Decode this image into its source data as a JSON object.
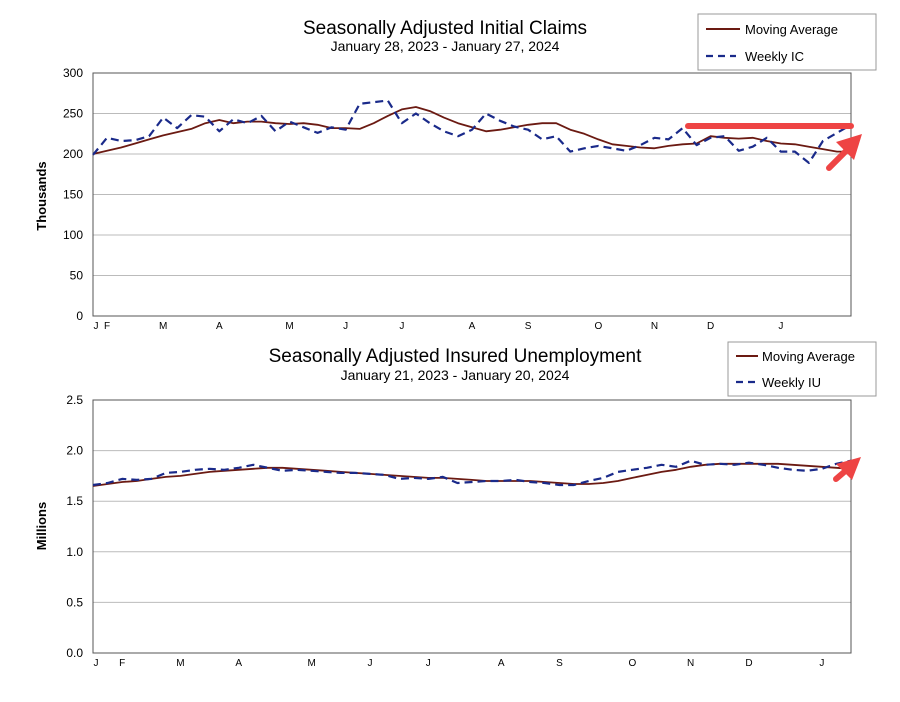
{
  "colors": {
    "moving_average": "#6b1a12",
    "weekly": "#1a2a8a",
    "annotation": "#ee4444",
    "grid": "#bbbbbb"
  },
  "chart_data": [
    {
      "type": "line",
      "title": "Seasonally Adjusted Initial Claims",
      "subtitle": "January 28, 2023 - January 27, 2024",
      "ylabel": "Thousands",
      "xlabel": "",
      "ylim": [
        0,
        300
      ],
      "yticks": [
        0,
        50,
        100,
        150,
        200,
        250,
        300
      ],
      "ytick_labels": [
        "0",
        "50",
        "100",
        "150",
        "200",
        "250",
        "300"
      ],
      "grid": true,
      "legend": "top-right",
      "month_labels": [
        "J",
        "F",
        "M",
        "A",
        "M",
        "J",
        "J",
        "A",
        "S",
        "O",
        "N",
        "D",
        "J"
      ],
      "month_weeks": [
        0,
        1,
        5,
        9,
        14,
        18,
        22,
        27,
        31,
        36,
        40,
        44,
        49
      ],
      "series": [
        {
          "name": "Moving Average",
          "style": "solid",
          "values": [
            200,
            204,
            208,
            213,
            218,
            223,
            227,
            231,
            238,
            242,
            238,
            240,
            240,
            238,
            237,
            238,
            236,
            232,
            232,
            231,
            238,
            247,
            255,
            258,
            253,
            245,
            238,
            233,
            228,
            230,
            233,
            236,
            238,
            238,
            230,
            225,
            218,
            212,
            210,
            208,
            207,
            210,
            212,
            213,
            222,
            220,
            219,
            220,
            216,
            213,
            212,
            209,
            206,
            203,
            203
          ]
        },
        {
          "name": "Weekly IC",
          "style": "dashed",
          "values": [
            199,
            220,
            216,
            217,
            222,
            245,
            232,
            248,
            246,
            228,
            243,
            238,
            247,
            228,
            240,
            233,
            226,
            233,
            230,
            262,
            264,
            266,
            238,
            250,
            238,
            228,
            222,
            230,
            250,
            241,
            234,
            230,
            218,
            222,
            203,
            207,
            210,
            207,
            204,
            211,
            220,
            218,
            232,
            211,
            220,
            222,
            204,
            209,
            220,
            203,
            203,
            189,
            216,
            226,
            236
          ]
        }
      ],
      "annotations": [
        "red horizontal line",
        "red upward arrow"
      ]
    },
    {
      "type": "line",
      "title": "Seasonally Adjusted Insured Unemployment",
      "subtitle": "January 21, 2023 - January 20, 2024",
      "ylabel": "Millions",
      "xlabel": "",
      "ylim": [
        0.0,
        2.5
      ],
      "yticks": [
        0.0,
        0.5,
        1.0,
        1.5,
        2.0,
        2.5
      ],
      "ytick_labels": [
        "0.0",
        "0.5",
        "1.0",
        "1.5",
        "2.0",
        "2.5"
      ],
      "grid": true,
      "legend": "top-right",
      "month_labels": [
        "J",
        "F",
        "M",
        "A",
        "M",
        "J",
        "J",
        "A",
        "S",
        "O",
        "N",
        "D",
        "J"
      ],
      "month_weeks": [
        0,
        2,
        6,
        10,
        15,
        19,
        23,
        28,
        32,
        37,
        41,
        45,
        50
      ],
      "series": [
        {
          "name": "Moving Average",
          "style": "solid",
          "values": [
            1.65,
            1.67,
            1.69,
            1.7,
            1.72,
            1.74,
            1.75,
            1.77,
            1.79,
            1.8,
            1.81,
            1.82,
            1.83,
            1.83,
            1.82,
            1.81,
            1.8,
            1.79,
            1.78,
            1.77,
            1.76,
            1.75,
            1.74,
            1.73,
            1.73,
            1.72,
            1.71,
            1.7,
            1.7,
            1.7,
            1.7,
            1.69,
            1.68,
            1.67,
            1.67,
            1.68,
            1.7,
            1.73,
            1.76,
            1.79,
            1.81,
            1.84,
            1.86,
            1.87,
            1.87,
            1.87,
            1.87,
            1.87,
            1.86,
            1.85,
            1.84,
            1.83,
            1.82
          ]
        },
        {
          "name": "Weekly IU",
          "style": "dashed",
          "values": [
            1.66,
            1.68,
            1.72,
            1.71,
            1.72,
            1.78,
            1.79,
            1.81,
            1.82,
            1.81,
            1.83,
            1.86,
            1.83,
            1.8,
            1.81,
            1.8,
            1.79,
            1.78,
            1.78,
            1.77,
            1.76,
            1.72,
            1.73,
            1.72,
            1.74,
            1.68,
            1.69,
            1.7,
            1.7,
            1.71,
            1.69,
            1.68,
            1.66,
            1.66,
            1.7,
            1.73,
            1.79,
            1.81,
            1.83,
            1.86,
            1.84,
            1.9,
            1.86,
            1.87,
            1.86,
            1.88,
            1.86,
            1.83,
            1.81,
            1.8,
            1.82,
            1.87,
            1.9
          ]
        }
      ],
      "annotations": [
        "red upward arrow"
      ]
    }
  ]
}
